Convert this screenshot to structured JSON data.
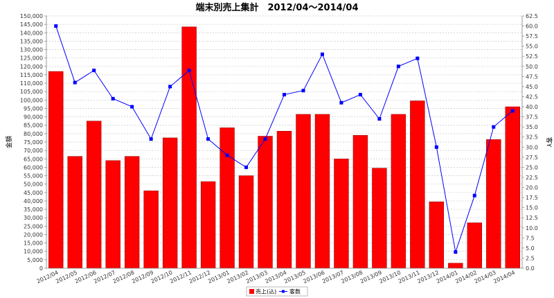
{
  "chart_data": {
    "type": "bar",
    "title": "端末別売上集計　2012/04～2014/04",
    "xlabel": "",
    "ylabel": "金額",
    "y2label": "客Y",
    "categories": [
      "2012/04",
      "2012/05",
      "2012/06",
      "2012/07",
      "2012/08",
      "2012/09",
      "2012/10",
      "2012/11",
      "2012/12",
      "2013/01",
      "2013/02",
      "2013/03",
      "2013/04",
      "2013/05",
      "2013/06",
      "2013/07",
      "2013/08",
      "2013/09",
      "2013/10",
      "2013/11",
      "2013/12",
      "2014/01",
      "2014/02",
      "2014/03",
      "2014/04"
    ],
    "series": [
      {
        "name": "売上(込)",
        "type": "bar",
        "axis": "left",
        "color": "#ff0000",
        "values": [
          117000,
          66500,
          87500,
          64000,
          66500,
          46000,
          77500,
          143500,
          51500,
          83500,
          55000,
          78500,
          81500,
          91500,
          91500,
          65000,
          79000,
          59500,
          91500,
          99500,
          39500,
          3000,
          27000,
          76500,
          96000
        ]
      },
      {
        "name": "客数",
        "type": "line",
        "axis": "right",
        "color": "#0000ff",
        "values": [
          60,
          46,
          49,
          42,
          40,
          32,
          45,
          49,
          32,
          28,
          25,
          32,
          43,
          44,
          53,
          41,
          43,
          37,
          50,
          52,
          30,
          4,
          18,
          35,
          39
        ]
      }
    ],
    "ylim": [
      0,
      150000
    ],
    "ystep": 5000,
    "y2lim": [
      0,
      62.5
    ],
    "y2step": 2.5,
    "grid": true,
    "legend": "bottom-center"
  }
}
